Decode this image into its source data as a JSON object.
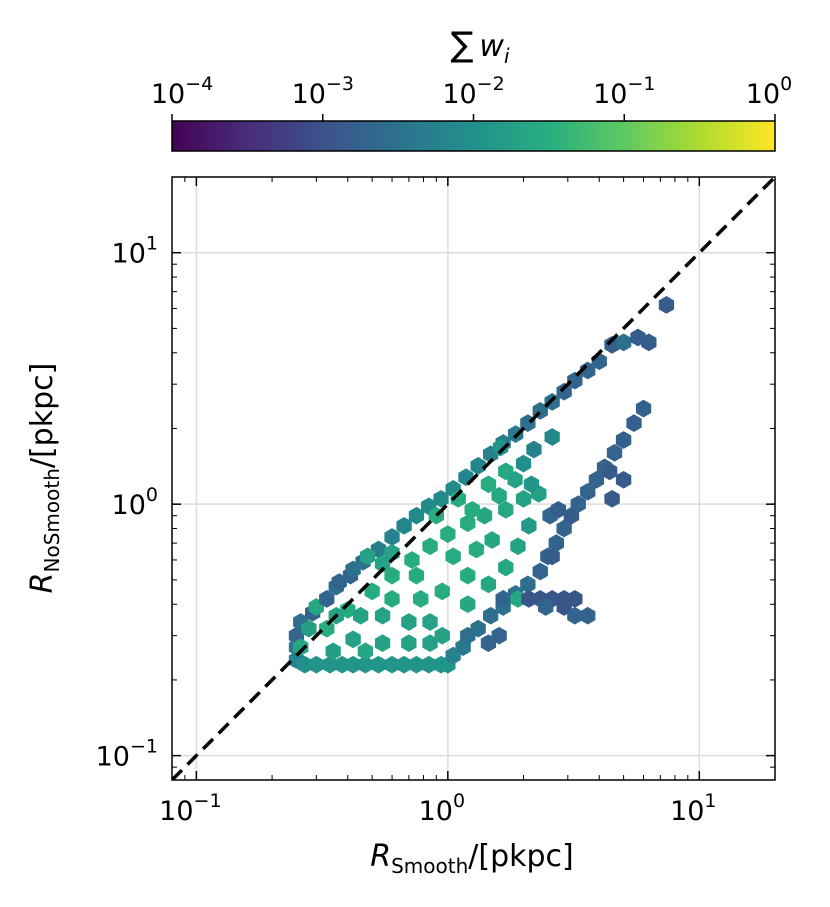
{
  "chart_data": {
    "type": "heatmap",
    "subtype": "hexbin",
    "x_scale": "log",
    "y_scale": "log",
    "xlim": [
      0.08,
      20
    ],
    "ylim": [
      0.08,
      20
    ],
    "grid": true,
    "x_label": {
      "symbol": "R",
      "subscript": "Smooth",
      "unit": "/[pkpc]"
    },
    "y_label": {
      "symbol": "R",
      "subscript": "NoSmooth",
      "unit": "/[pkpc]"
    },
    "x_ticks": [
      {
        "value": 0.1,
        "base": "10",
        "exp": "−1"
      },
      {
        "value": 1,
        "base": "10",
        "exp": "0"
      },
      {
        "value": 10,
        "base": "10",
        "exp": "1"
      }
    ],
    "y_ticks": [
      {
        "value": 0.1,
        "base": "10",
        "exp": "−1"
      },
      {
        "value": 1,
        "base": "10",
        "exp": "0"
      },
      {
        "value": 10,
        "base": "10",
        "exp": "1"
      }
    ],
    "reference_line": {
      "style": "dashed",
      "color": "#000000",
      "relation": "y = x"
    },
    "colorbar": {
      "label": "∑ w_i",
      "label_symbol": "∑",
      "label_var": "w",
      "label_sub": "i",
      "scale": "log",
      "range": [
        0.0001,
        1
      ],
      "colormap": "viridis",
      "ticks": [
        {
          "value": 0.0001,
          "base": "10",
          "exp": "−4"
        },
        {
          "value": 0.001,
          "base": "10",
          "exp": "−3"
        },
        {
          "value": 0.01,
          "base": "10",
          "exp": "−2"
        },
        {
          "value": 0.1,
          "base": "10",
          "exp": "−1"
        },
        {
          "value": 1,
          "base": "10",
          "exp": "0"
        }
      ]
    },
    "points": [
      {
        "x": 0.25,
        "y": 0.24,
        "w": 0.006
      },
      {
        "x": 0.27,
        "y": 0.23,
        "w": 0.01
      },
      {
        "x": 0.3,
        "y": 0.23,
        "w": 0.012
      },
      {
        "x": 0.34,
        "y": 0.23,
        "w": 0.012
      },
      {
        "x": 0.38,
        "y": 0.23,
        "w": 0.012
      },
      {
        "x": 0.42,
        "y": 0.23,
        "w": 0.012
      },
      {
        "x": 0.47,
        "y": 0.23,
        "w": 0.012
      },
      {
        "x": 0.53,
        "y": 0.23,
        "w": 0.012
      },
      {
        "x": 0.6,
        "y": 0.23,
        "w": 0.012
      },
      {
        "x": 0.67,
        "y": 0.23,
        "w": 0.012
      },
      {
        "x": 0.75,
        "y": 0.23,
        "w": 0.012
      },
      {
        "x": 0.84,
        "y": 0.23,
        "w": 0.012
      },
      {
        "x": 0.94,
        "y": 0.23,
        "w": 0.012
      },
      {
        "x": 1.0,
        "y": 0.23,
        "w": 0.012
      },
      {
        "x": 0.25,
        "y": 0.27,
        "w": 0.004
      },
      {
        "x": 0.25,
        "y": 0.3,
        "w": 0.002
      },
      {
        "x": 0.26,
        "y": 0.34,
        "w": 0.003
      },
      {
        "x": 0.29,
        "y": 0.37,
        "w": 0.002
      },
      {
        "x": 0.3,
        "y": 0.39,
        "w": 0.025
      },
      {
        "x": 0.33,
        "y": 0.42,
        "w": 0.002
      },
      {
        "x": 0.36,
        "y": 0.47,
        "w": 0.003
      },
      {
        "x": 0.37,
        "y": 0.49,
        "w": 0.002
      },
      {
        "x": 0.41,
        "y": 0.52,
        "w": 0.002
      },
      {
        "x": 0.42,
        "y": 0.55,
        "w": 0.003
      },
      {
        "x": 0.46,
        "y": 0.59,
        "w": 0.003
      },
      {
        "x": 0.53,
        "y": 0.66,
        "w": 0.005
      },
      {
        "x": 0.6,
        "y": 0.74,
        "w": 0.006
      },
      {
        "x": 0.67,
        "y": 0.82,
        "w": 0.007
      },
      {
        "x": 0.75,
        "y": 0.9,
        "w": 0.008
      },
      {
        "x": 0.84,
        "y": 0.98,
        "w": 0.008
      },
      {
        "x": 0.94,
        "y": 1.05,
        "w": 0.008
      },
      {
        "x": 1.05,
        "y": 1.15,
        "w": 0.008
      },
      {
        "x": 1.18,
        "y": 1.28,
        "w": 0.007
      },
      {
        "x": 1.32,
        "y": 1.42,
        "w": 0.007
      },
      {
        "x": 1.48,
        "y": 1.58,
        "w": 0.006
      },
      {
        "x": 1.66,
        "y": 1.75,
        "w": 0.005
      },
      {
        "x": 1.86,
        "y": 1.9,
        "w": 0.004
      },
      {
        "x": 2.08,
        "y": 2.1,
        "w": 0.003
      },
      {
        "x": 2.33,
        "y": 2.35,
        "w": 0.003
      },
      {
        "x": 2.6,
        "y": 2.55,
        "w": 0.003
      },
      {
        "x": 2.9,
        "y": 2.8,
        "w": 0.002
      },
      {
        "x": 3.2,
        "y": 3.1,
        "w": 0.002
      },
      {
        "x": 3.6,
        "y": 3.4,
        "w": 0.002
      },
      {
        "x": 4.0,
        "y": 3.7,
        "w": 0.002
      },
      {
        "x": 4.5,
        "y": 4.3,
        "w": 0.0015
      },
      {
        "x": 5.0,
        "y": 4.4,
        "w": 0.003
      },
      {
        "x": 5.7,
        "y": 4.6,
        "w": 0.0015
      },
      {
        "x": 6.3,
        "y": 4.4,
        "w": 0.0015
      },
      {
        "x": 7.4,
        "y": 6.2,
        "w": 0.0015
      },
      {
        "x": 1.05,
        "y": 0.25,
        "w": 0.006
      },
      {
        "x": 1.15,
        "y": 0.27,
        "w": 0.004
      },
      {
        "x": 1.2,
        "y": 0.3,
        "w": 0.003
      },
      {
        "x": 1.32,
        "y": 0.32,
        "w": 0.003
      },
      {
        "x": 1.48,
        "y": 0.36,
        "w": 0.003
      },
      {
        "x": 1.66,
        "y": 0.39,
        "w": 0.003
      },
      {
        "x": 1.86,
        "y": 0.44,
        "w": 0.003
      },
      {
        "x": 2.08,
        "y": 0.48,
        "w": 0.003
      },
      {
        "x": 2.33,
        "y": 0.54,
        "w": 0.002
      },
      {
        "x": 2.5,
        "y": 0.62,
        "w": 0.002
      },
      {
        "x": 2.7,
        "y": 0.7,
        "w": 0.002
      },
      {
        "x": 2.9,
        "y": 0.8,
        "w": 0.002
      },
      {
        "x": 3.1,
        "y": 0.9,
        "w": 0.0015
      },
      {
        "x": 3.3,
        "y": 1.0,
        "w": 0.002
      },
      {
        "x": 3.6,
        "y": 1.12,
        "w": 0.002
      },
      {
        "x": 3.9,
        "y": 1.25,
        "w": 0.002
      },
      {
        "x": 4.2,
        "y": 1.4,
        "w": 0.002
      },
      {
        "x": 4.6,
        "y": 1.6,
        "w": 0.002
      },
      {
        "x": 5.0,
        "y": 1.8,
        "w": 0.0018
      },
      {
        "x": 5.5,
        "y": 2.1,
        "w": 0.0018
      },
      {
        "x": 6.0,
        "y": 2.4,
        "w": 0.0018
      },
      {
        "x": 2.55,
        "y": 0.9,
        "w": 0.002
      },
      {
        "x": 2.75,
        "y": 0.95,
        "w": 0.0015
      },
      {
        "x": 4.5,
        "y": 1.05,
        "w": 0.0015
      },
      {
        "x": 5.0,
        "y": 1.25,
        "w": 0.0015
      },
      {
        "x": 4.4,
        "y": 1.35,
        "w": 0.0015
      },
      {
        "x": 1.66,
        "y": 0.42,
        "w": 0.002
      },
      {
        "x": 1.9,
        "y": 0.42,
        "w": 0.025
      },
      {
        "x": 2.1,
        "y": 0.42,
        "w": 0.0012
      },
      {
        "x": 2.33,
        "y": 0.42,
        "w": 0.0012
      },
      {
        "x": 2.6,
        "y": 0.42,
        "w": 0.0012
      },
      {
        "x": 2.9,
        "y": 0.42,
        "w": 0.0012
      },
      {
        "x": 3.2,
        "y": 0.42,
        "w": 0.0012
      },
      {
        "x": 2.45,
        "y": 0.39,
        "w": 0.002
      },
      {
        "x": 2.9,
        "y": 0.39,
        "w": 0.0012
      },
      {
        "x": 3.2,
        "y": 0.36,
        "w": 0.002
      },
      {
        "x": 3.6,
        "y": 0.36,
        "w": 0.002
      },
      {
        "x": 1.6,
        "y": 0.3,
        "w": 0.002
      },
      {
        "x": 1.45,
        "y": 0.28,
        "w": 0.002
      },
      {
        "x": 2.6,
        "y": 0.62,
        "w": 0.0015
      },
      {
        "x": 0.26,
        "y": 0.27,
        "w": 0.025
      },
      {
        "x": 0.33,
        "y": 0.32,
        "w": 0.03
      },
      {
        "x": 0.4,
        "y": 0.38,
        "w": 0.03
      },
      {
        "x": 0.5,
        "y": 0.45,
        "w": 0.03
      },
      {
        "x": 0.6,
        "y": 0.52,
        "w": 0.03
      },
      {
        "x": 0.72,
        "y": 0.6,
        "w": 0.03
      },
      {
        "x": 0.85,
        "y": 0.68,
        "w": 0.03
      },
      {
        "x": 1.0,
        "y": 0.76,
        "w": 0.03
      },
      {
        "x": 1.2,
        "y": 0.84,
        "w": 0.03
      },
      {
        "x": 1.4,
        "y": 0.9,
        "w": 0.025
      },
      {
        "x": 1.7,
        "y": 0.95,
        "w": 0.025
      },
      {
        "x": 2.0,
        "y": 1.05,
        "w": 0.02
      },
      {
        "x": 2.3,
        "y": 1.1,
        "w": 0.02
      },
      {
        "x": 1.45,
        "y": 1.2,
        "w": 0.03
      },
      {
        "x": 1.7,
        "y": 1.35,
        "w": 0.025
      },
      {
        "x": 1.62,
        "y": 1.68,
        "w": 0.012
      },
      {
        "x": 2.6,
        "y": 1.85,
        "w": 0.008
      },
      {
        "x": 2.15,
        "y": 1.2,
        "w": 0.012
      },
      {
        "x": 0.28,
        "y": 0.32,
        "w": 0.018
      },
      {
        "x": 0.36,
        "y": 0.36,
        "w": 0.02
      },
      {
        "x": 0.45,
        "y": 0.36,
        "w": 0.02
      },
      {
        "x": 0.55,
        "y": 0.36,
        "w": 0.02
      },
      {
        "x": 0.7,
        "y": 0.34,
        "w": 0.02
      },
      {
        "x": 0.85,
        "y": 0.34,
        "w": 0.02
      },
      {
        "x": 0.55,
        "y": 0.28,
        "w": 0.02
      },
      {
        "x": 0.7,
        "y": 0.28,
        "w": 0.02
      },
      {
        "x": 0.85,
        "y": 0.28,
        "w": 0.02
      },
      {
        "x": 0.42,
        "y": 0.29,
        "w": 0.02
      },
      {
        "x": 0.35,
        "y": 0.26,
        "w": 0.018
      },
      {
        "x": 0.47,
        "y": 0.26,
        "w": 0.025
      },
      {
        "x": 0.95,
        "y": 0.3,
        "w": 0.02
      },
      {
        "x": 0.6,
        "y": 0.42,
        "w": 0.03
      },
      {
        "x": 0.78,
        "y": 0.42,
        "w": 0.03
      },
      {
        "x": 0.95,
        "y": 0.45,
        "w": 0.03
      },
      {
        "x": 1.2,
        "y": 0.52,
        "w": 0.03
      },
      {
        "x": 0.55,
        "y": 0.58,
        "w": 0.02
      },
      {
        "x": 0.48,
        "y": 0.62,
        "w": 0.02
      },
      {
        "x": 0.6,
        "y": 0.64,
        "w": 0.02
      },
      {
        "x": 0.75,
        "y": 0.52,
        "w": 0.03
      },
      {
        "x": 1.05,
        "y": 0.62,
        "w": 0.03
      },
      {
        "x": 1.3,
        "y": 0.66,
        "w": 0.03
      },
      {
        "x": 1.5,
        "y": 0.72,
        "w": 0.025
      },
      {
        "x": 1.2,
        "y": 0.4,
        "w": 0.025
      },
      {
        "x": 1.45,
        "y": 0.48,
        "w": 0.025
      },
      {
        "x": 1.7,
        "y": 0.56,
        "w": 0.025
      },
      {
        "x": 1.9,
        "y": 0.68,
        "w": 0.02
      },
      {
        "x": 2.1,
        "y": 0.82,
        "w": 0.015
      },
      {
        "x": 0.9,
        "y": 0.9,
        "w": 0.03
      },
      {
        "x": 1.1,
        "y": 1.05,
        "w": 0.03
      },
      {
        "x": 1.25,
        "y": 0.95,
        "w": 0.03
      },
      {
        "x": 1.85,
        "y": 1.25,
        "w": 0.02
      },
      {
        "x": 1.6,
        "y": 1.08,
        "w": 0.025
      },
      {
        "x": 2.0,
        "y": 1.45,
        "w": 0.01
      },
      {
        "x": 2.2,
        "y": 1.65,
        "w": 0.006
      }
    ]
  }
}
